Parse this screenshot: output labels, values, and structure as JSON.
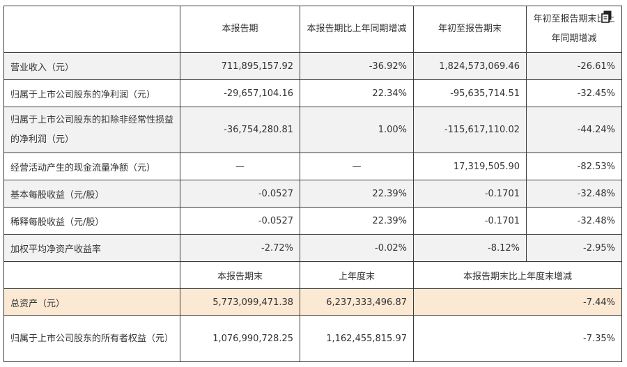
{
  "header": {
    "blank": "",
    "col1": "本报告期",
    "col2": "本报告期比上年同期增减",
    "col3": "年初至报告期末",
    "col4": "年初至报告期末比上年同期增减"
  },
  "rows": [
    {
      "label": "营业收入（元）",
      "v1": "711,895,157.92",
      "v2": "-36.92%",
      "v3": "1,824,573,069.46",
      "v4": "-26.61%"
    },
    {
      "label": "归属于上市公司股东的净利润（元）",
      "v1": "-29,657,104.16",
      "v2": "22.34%",
      "v3": "-95,635,714.51",
      "v4": "-32.45%"
    },
    {
      "label": "归属于上市公司股东的扣除非经常性损益的净利润（元）",
      "v1": "-36,754,280.81",
      "v2": "1.00%",
      "v3": "-115,617,110.02",
      "v4": "-44.24%"
    },
    {
      "label": "经营活动产生的现金流量净额（元）",
      "v1": "—",
      "v2": "—",
      "v3": "17,319,505.90",
      "v4": "-82.53%"
    },
    {
      "label": "基本每股收益（元/股）",
      "v1": "-0.0527",
      "v2": "22.39%",
      "v3": "-0.1701",
      "v4": "-32.48%"
    },
    {
      "label": "稀释每股收益（元/股）",
      "v1": "-0.0527",
      "v2": "22.39%",
      "v3": "-0.1701",
      "v4": "-32.48%"
    },
    {
      "label": "加权平均净资产收益率",
      "v1": "-2.72%",
      "v2": "-0.02%",
      "v3": "-8.12%",
      "v4": "-2.95%"
    }
  ],
  "header2": {
    "blank": "",
    "col1": "本报告期末",
    "col2": "上年度末",
    "col3": "本报告期末比上年度末增减"
  },
  "rows2": [
    {
      "label": "总资产（元）",
      "v1": "5,773,099,471.38",
      "v2": "6,237,333,496.87",
      "v3": "-7.44%"
    },
    {
      "label": "归属于上市公司股东的所有者权益（元）",
      "v1": "1,076,990,728.25",
      "v2": "1,162,455,815.97",
      "v3": "-7.35%"
    }
  ],
  "icons": {
    "copy": "copy-icon"
  },
  "colors": {
    "highlight": "#fbe9d4",
    "shade": "#f2f2f2",
    "border": "#3a3a3a"
  }
}
